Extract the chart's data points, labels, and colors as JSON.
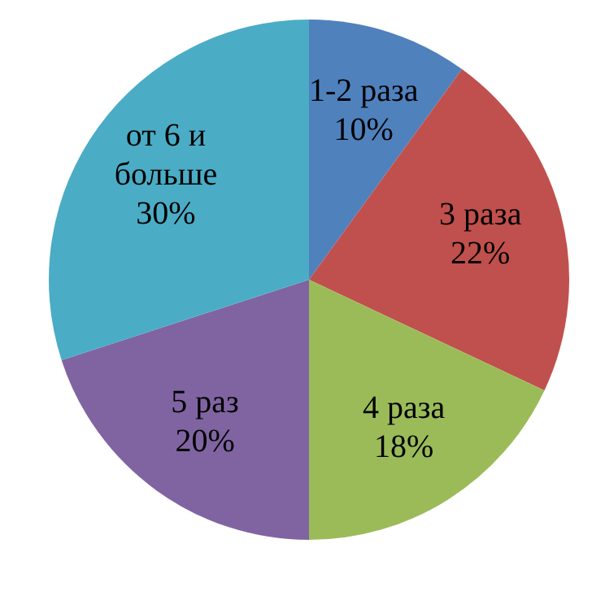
{
  "chart_data": {
    "type": "pie",
    "categories": [
      "1-2 раза",
      "3 раза",
      "4 раза",
      "5 раз",
      "от 6 и больше"
    ],
    "values": [
      10,
      22,
      18,
      20,
      30
    ],
    "colors": [
      "#4f81bd",
      "#c0504d",
      "#9bbb59",
      "#8064a2",
      "#4bacc6"
    ],
    "value_labels": [
      "10%",
      "22%",
      "18%",
      "20%",
      "30%"
    ],
    "legend": false
  }
}
